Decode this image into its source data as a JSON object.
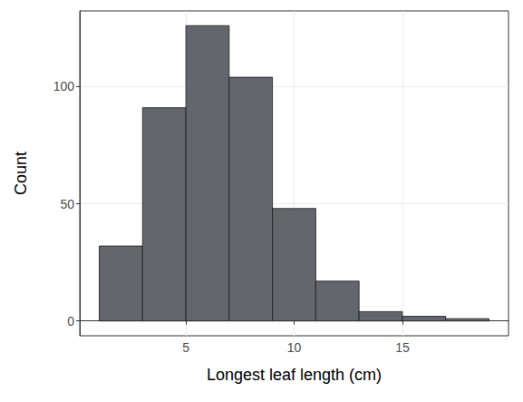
{
  "chart_data": {
    "type": "histogram",
    "x_label": "Longest leaf length (cm)",
    "y_label": "Count",
    "bins": [
      1,
      3,
      5,
      7,
      9,
      11,
      13,
      15,
      17,
      19
    ],
    "values": [
      32,
      91,
      126,
      104,
      48,
      17,
      4,
      2,
      1
    ],
    "color": "#63666a",
    "xlim": [
      0.1,
      19.9
    ],
    "ylim": [
      -6.3,
      132.3
    ],
    "xticks": [
      5,
      10,
      15
    ],
    "yticks": [
      0,
      50,
      100
    ],
    "grid": true
  }
}
